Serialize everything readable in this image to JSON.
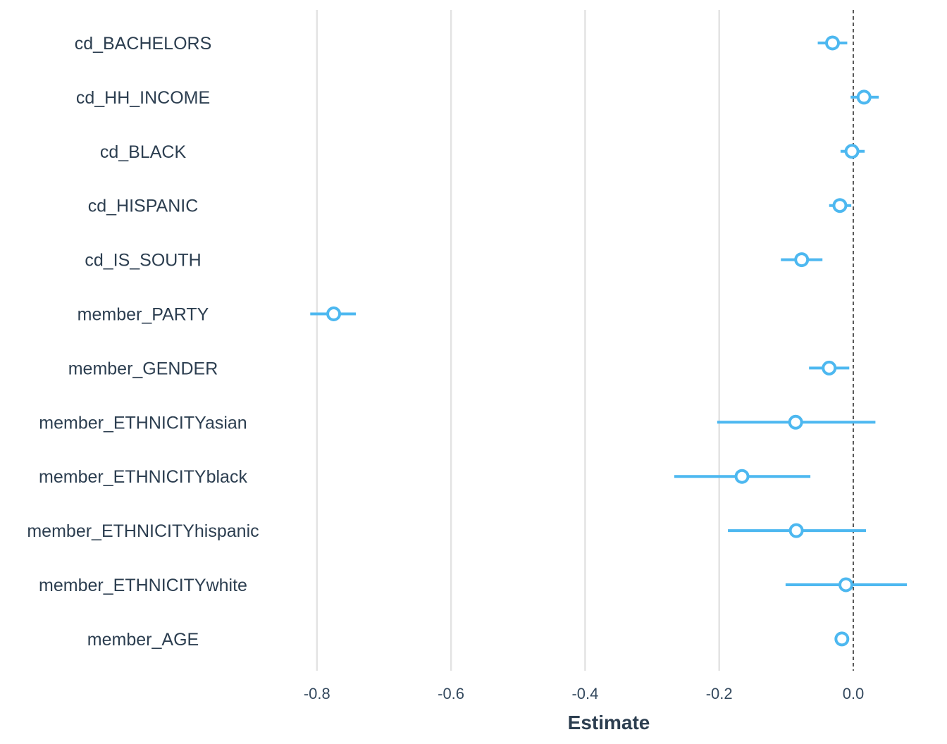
{
  "chart_data": {
    "type": "forest",
    "xlabel": "Estimate",
    "xlim": [
      -0.825,
      0.02
    ],
    "xticks": [
      -0.8,
      -0.6,
      -0.4,
      -0.2,
      0.0
    ],
    "xtick_labels": [
      "-0.8",
      "-0.6",
      "-0.4",
      "-0.2",
      "0.0"
    ],
    "reference_line": 0.0,
    "grid": "vertical",
    "color": "#4db8f0",
    "terms": [
      {
        "term": "cd_BACHELORS",
        "estimate": -0.031,
        "low": -0.053,
        "high": -0.009
      },
      {
        "term": "cd_HH_INCOME",
        "estimate": 0.016,
        "low": -0.004,
        "high": 0.038
      },
      {
        "term": "cd_BLACK",
        "estimate": -0.002,
        "low": -0.019,
        "high": 0.017
      },
      {
        "term": "cd_HISPANIC",
        "estimate": -0.02,
        "low": -0.036,
        "high": -0.003
      },
      {
        "term": "cd_IS_SOUTH",
        "estimate": -0.077,
        "low": -0.108,
        "high": -0.046
      },
      {
        "term": "member_PARTY",
        "estimate": -0.775,
        "low": -0.81,
        "high": -0.742
      },
      {
        "term": "member_GENDER",
        "estimate": -0.036,
        "low": -0.066,
        "high": -0.006
      },
      {
        "term": "member_ETHNICITYasian",
        "estimate": -0.086,
        "low": -0.203,
        "high": 0.033
      },
      {
        "term": "member_ETHNICITYblack",
        "estimate": -0.166,
        "low": -0.267,
        "high": -0.064
      },
      {
        "term": "member_ETHNICITYhispanic",
        "estimate": -0.085,
        "low": -0.187,
        "high": 0.019
      },
      {
        "term": "member_ETHNICITYwhite",
        "estimate": -0.011,
        "low": -0.101,
        "high": 0.08
      },
      {
        "term": "member_AGE",
        "estimate": -0.017,
        "low": -0.026,
        "high": -0.008
      }
    ]
  }
}
